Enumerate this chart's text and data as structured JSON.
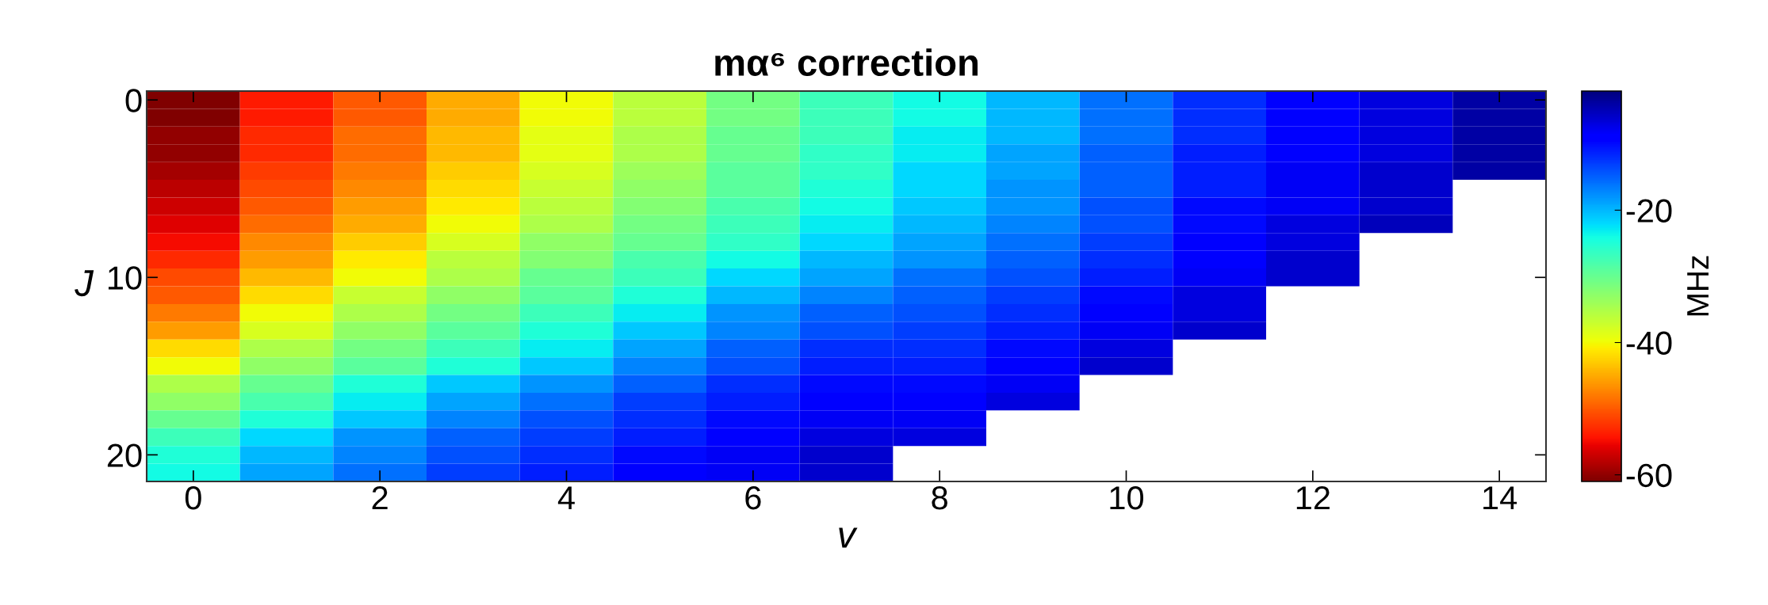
{
  "chart_data": {
    "type": "heatmap",
    "title": "mα⁶ correction",
    "xlabel": "v",
    "ylabel": "J",
    "clabel": "MHz",
    "categories": [
      "0",
      null,
      "2",
      null,
      "4",
      null,
      "6",
      null,
      "8",
      null,
      "10",
      null,
      "12",
      null,
      "14"
    ],
    "y_categories": [
      "0",
      null,
      null,
      null,
      null,
      null,
      null,
      null,
      null,
      null,
      "10",
      null,
      null,
      null,
      null,
      null,
      null,
      null,
      null,
      null,
      "20",
      null
    ],
    "clim": [
      -61,
      -2
    ],
    "cticks": [
      -20,
      -40,
      -60
    ],
    "cells": [
      [
        -61,
        -54,
        -50,
        -45,
        -40,
        -36,
        -31,
        -27,
        -24,
        -20,
        -16,
        -12,
        -9,
        -7,
        -4
      ],
      [
        -61,
        -54,
        -50,
        -45,
        -40,
        -36,
        -31,
        -27,
        -24,
        -20,
        -16,
        -12,
        -9,
        -7,
        -4
      ],
      [
        -60,
        -53,
        -49,
        -44,
        -39,
        -35,
        -30,
        -27,
        -23,
        -20,
        -16,
        -12,
        -9,
        -7,
        -4
      ],
      [
        -60,
        -53,
        -49,
        -44,
        -39,
        -35,
        -30,
        -26,
        -23,
        -19,
        -15,
        -11,
        -9,
        -7,
        -4
      ],
      [
        -59,
        -52,
        -48,
        -43,
        -38,
        -34,
        -29,
        -26,
        -22,
        -19,
        -15,
        -11,
        -8,
        -6,
        -4
      ],
      [
        -58,
        -51,
        -47,
        -42,
        -37,
        -33,
        -29,
        -25,
        -22,
        -18,
        -15,
        -11,
        -8,
        -6,
        null
      ],
      [
        -57,
        -50,
        -46,
        -41,
        -36,
        -32,
        -28,
        -24,
        -21,
        -18,
        -14,
        -10,
        -8,
        -6,
        null
      ],
      [
        -56,
        -49,
        -45,
        -40,
        -35,
        -31,
        -27,
        -23,
        -20,
        -17,
        -14,
        -10,
        -7,
        -5,
        null
      ],
      [
        -55,
        -47,
        -43,
        -38,
        -33,
        -30,
        -26,
        -22,
        -19,
        -16,
        -13,
        -9,
        -7,
        null,
        null
      ],
      [
        -53,
        -46,
        -41,
        -36,
        -32,
        -28,
        -24,
        -20,
        -18,
        -15,
        -12,
        -9,
        -6,
        null,
        null
      ],
      [
        -51,
        -44,
        -40,
        -35,
        -30,
        -27,
        -22,
        -19,
        -16,
        -14,
        -11,
        -8,
        -6,
        null,
        null
      ],
      [
        -50,
        -42,
        -37,
        -33,
        -29,
        -25,
        -20,
        -17,
        -15,
        -13,
        -10,
        -7,
        null,
        null,
        null
      ],
      [
        -48,
        -40,
        -35,
        -31,
        -27,
        -23,
        -18,
        -15,
        -14,
        -12,
        -9,
        -7,
        null,
        null,
        null
      ],
      [
        -46,
        -38,
        -33,
        -29,
        -25,
        -21,
        -17,
        -14,
        -13,
        -11,
        -8,
        -6,
        null,
        null,
        null
      ],
      [
        -42,
        -35,
        -31,
        -27,
        -23,
        -19,
        -15,
        -12,
        -12,
        -10,
        -7,
        null,
        null,
        null,
        null
      ],
      [
        -40,
        -33,
        -29,
        -25,
        -21,
        -17,
        -14,
        -11,
        -11,
        -9,
        -6,
        null,
        null,
        null,
        null
      ],
      [
        -35,
        -30,
        -25,
        -21,
        -18,
        -15,
        -12,
        -10,
        -10,
        -8,
        null,
        null,
        null,
        null,
        null
      ],
      [
        -33,
        -28,
        -23,
        -19,
        -16,
        -13,
        -11,
        -9,
        -9,
        -7,
        null,
        null,
        null,
        null,
        null
      ],
      [
        -30,
        -25,
        -21,
        -17,
        -14,
        -12,
        -10,
        -8,
        -8,
        null,
        null,
        null,
        null,
        null,
        null
      ],
      [
        -27,
        -22,
        -18,
        -15,
        -13,
        -11,
        -9,
        -7,
        -7,
        null,
        null,
        null,
        null,
        null,
        null
      ],
      [
        -25,
        -20,
        -17,
        -14,
        -12,
        -10,
        -8,
        -6,
        null,
        null,
        null,
        null,
        null,
        null,
        null
      ],
      [
        -24,
        -19,
        -16,
        -13,
        -11,
        -9,
        -8,
        -6,
        null,
        null,
        null,
        null,
        null,
        null,
        null
      ]
    ]
  }
}
